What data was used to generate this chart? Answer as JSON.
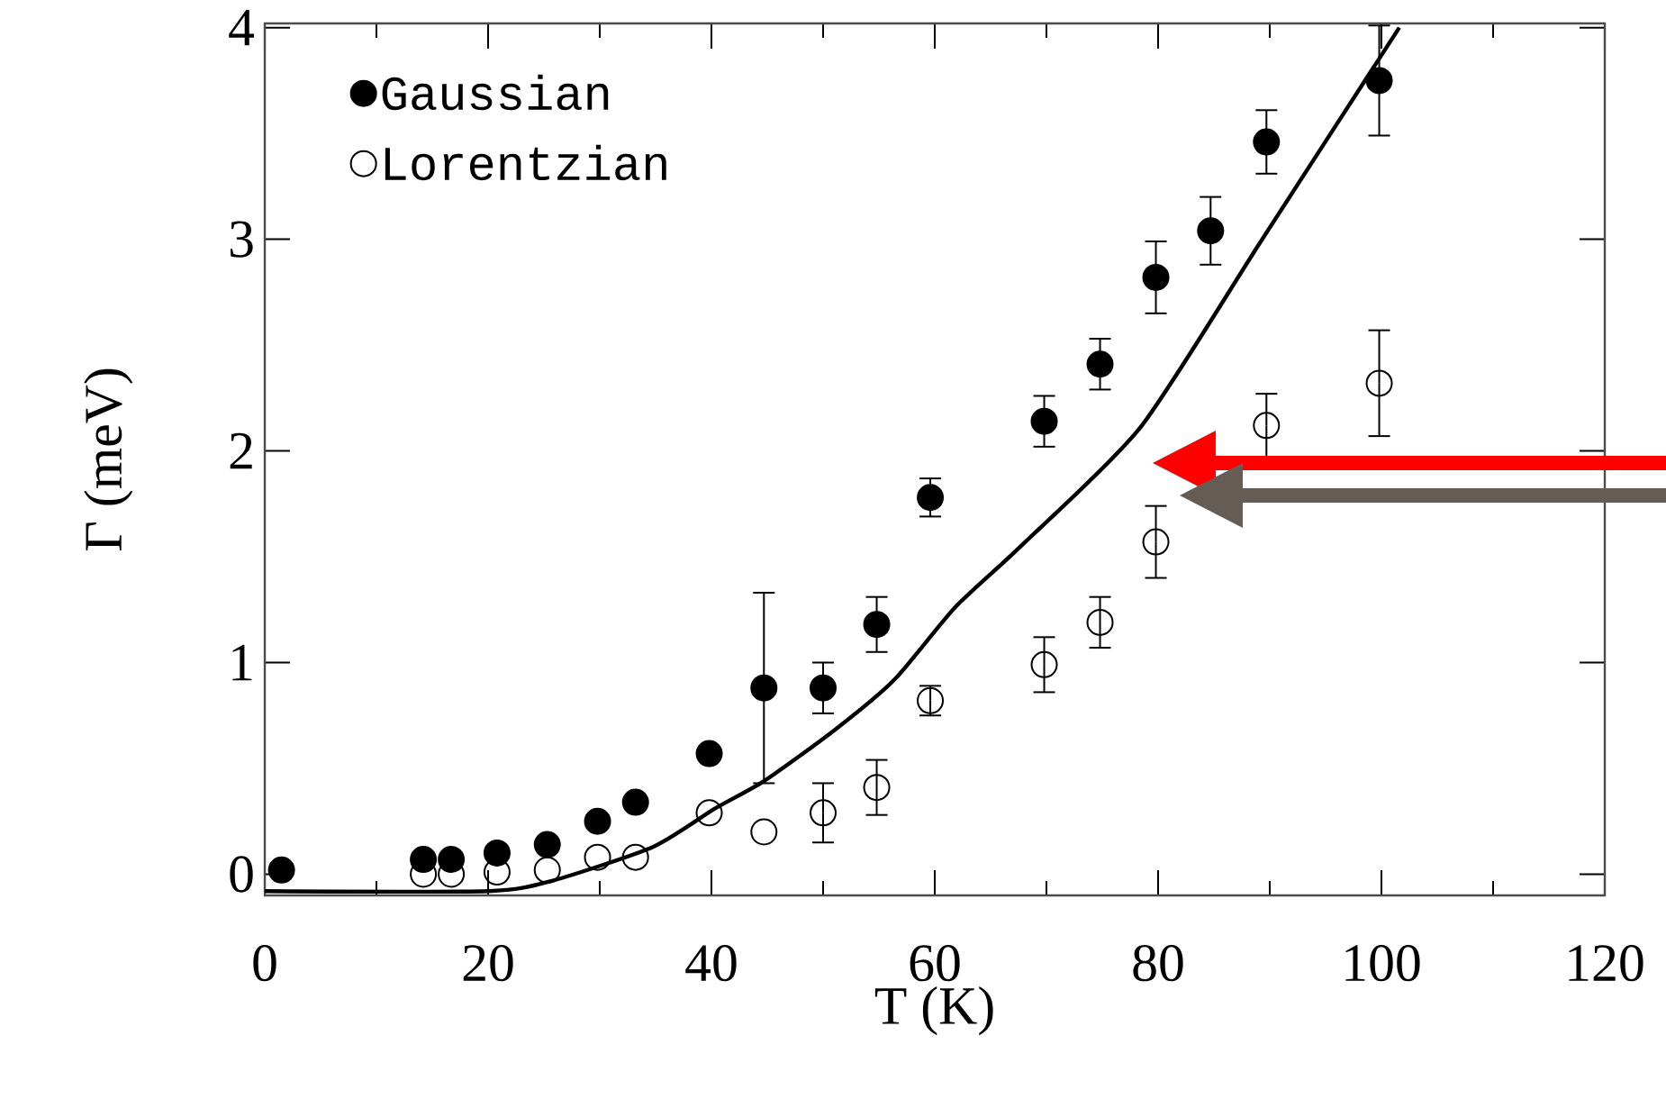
{
  "chart_data": {
    "type": "scatter",
    "xlabel": "T (K)",
    "ylabel": "Γ (meV)",
    "xlim": [
      0,
      120
    ],
    "xticks": [
      0,
      20,
      40,
      60,
      80,
      100,
      120
    ],
    "ylim": [
      -0.1,
      4.02
    ],
    "yticks": [
      0,
      1,
      2,
      3,
      4
    ],
    "legend": "top left",
    "marker": "circle",
    "grid": false,
    "series": [
      {
        "name": "Gaussian",
        "color": "#000000",
        "x": [
          1.5,
          14.2,
          16.7,
          20.8,
          25.3,
          29.8,
          33.2,
          39.8,
          44.7,
          50,
          54.8,
          59.6,
          69.8,
          74.8,
          79.8,
          84.7,
          89.7,
          99.8
        ],
        "values": [
          0.02,
          0.07,
          0.07,
          0.1,
          0.14,
          0.25,
          0.34,
          0.57,
          0.88,
          0.88,
          1.18,
          1.78,
          2.14,
          2.41,
          2.82,
          3.04,
          3.46,
          3.75
        ],
        "errors": [
          null,
          null,
          null,
          null,
          null,
          null,
          null,
          null,
          0.45,
          0.12,
          0.13,
          0.09,
          0.12,
          0.12,
          0.17,
          0.16,
          0.15,
          0.26
        ]
      },
      {
        "name": "Lorentzian",
        "color": "#000000",
        "x": [
          14.2,
          16.7,
          20.8,
          25.3,
          29.8,
          33.2,
          39.8,
          44.7,
          50,
          54.8,
          59.6,
          69.8,
          74.8,
          79.8,
          84.7,
          89.7,
          99.8
        ],
        "values": [
          0.0,
          0.0,
          0.01,
          0.02,
          0.08,
          0.08,
          0.29,
          0.2,
          0.29,
          0.41,
          0.82,
          0.99,
          1.19,
          1.57,
          null,
          2.12,
          2.32
        ],
        "errors": [
          null,
          null,
          null,
          null,
          null,
          null,
          null,
          null,
          0.14,
          0.13,
          0.07,
          0.13,
          0.12,
          0.17,
          null,
          0.15,
          0.25
        ]
      },
      {
        "type": "line",
        "color": "#000000",
        "marker": "none",
        "line_style": "solid",
        "x": [
          0,
          20,
          25.8,
          34.8,
          40.3,
          44.7,
          51,
          56.4,
          61.8,
          67.7,
          78.4,
          89.2,
          101.6
        ],
        "values": [
          -0.08,
          -0.08,
          -0.03,
          0.13,
          0.31,
          0.44,
          0.68,
          0.92,
          1.26,
          1.55,
          2.11,
          2.99,
          4.0
        ]
      }
    ]
  }
}
